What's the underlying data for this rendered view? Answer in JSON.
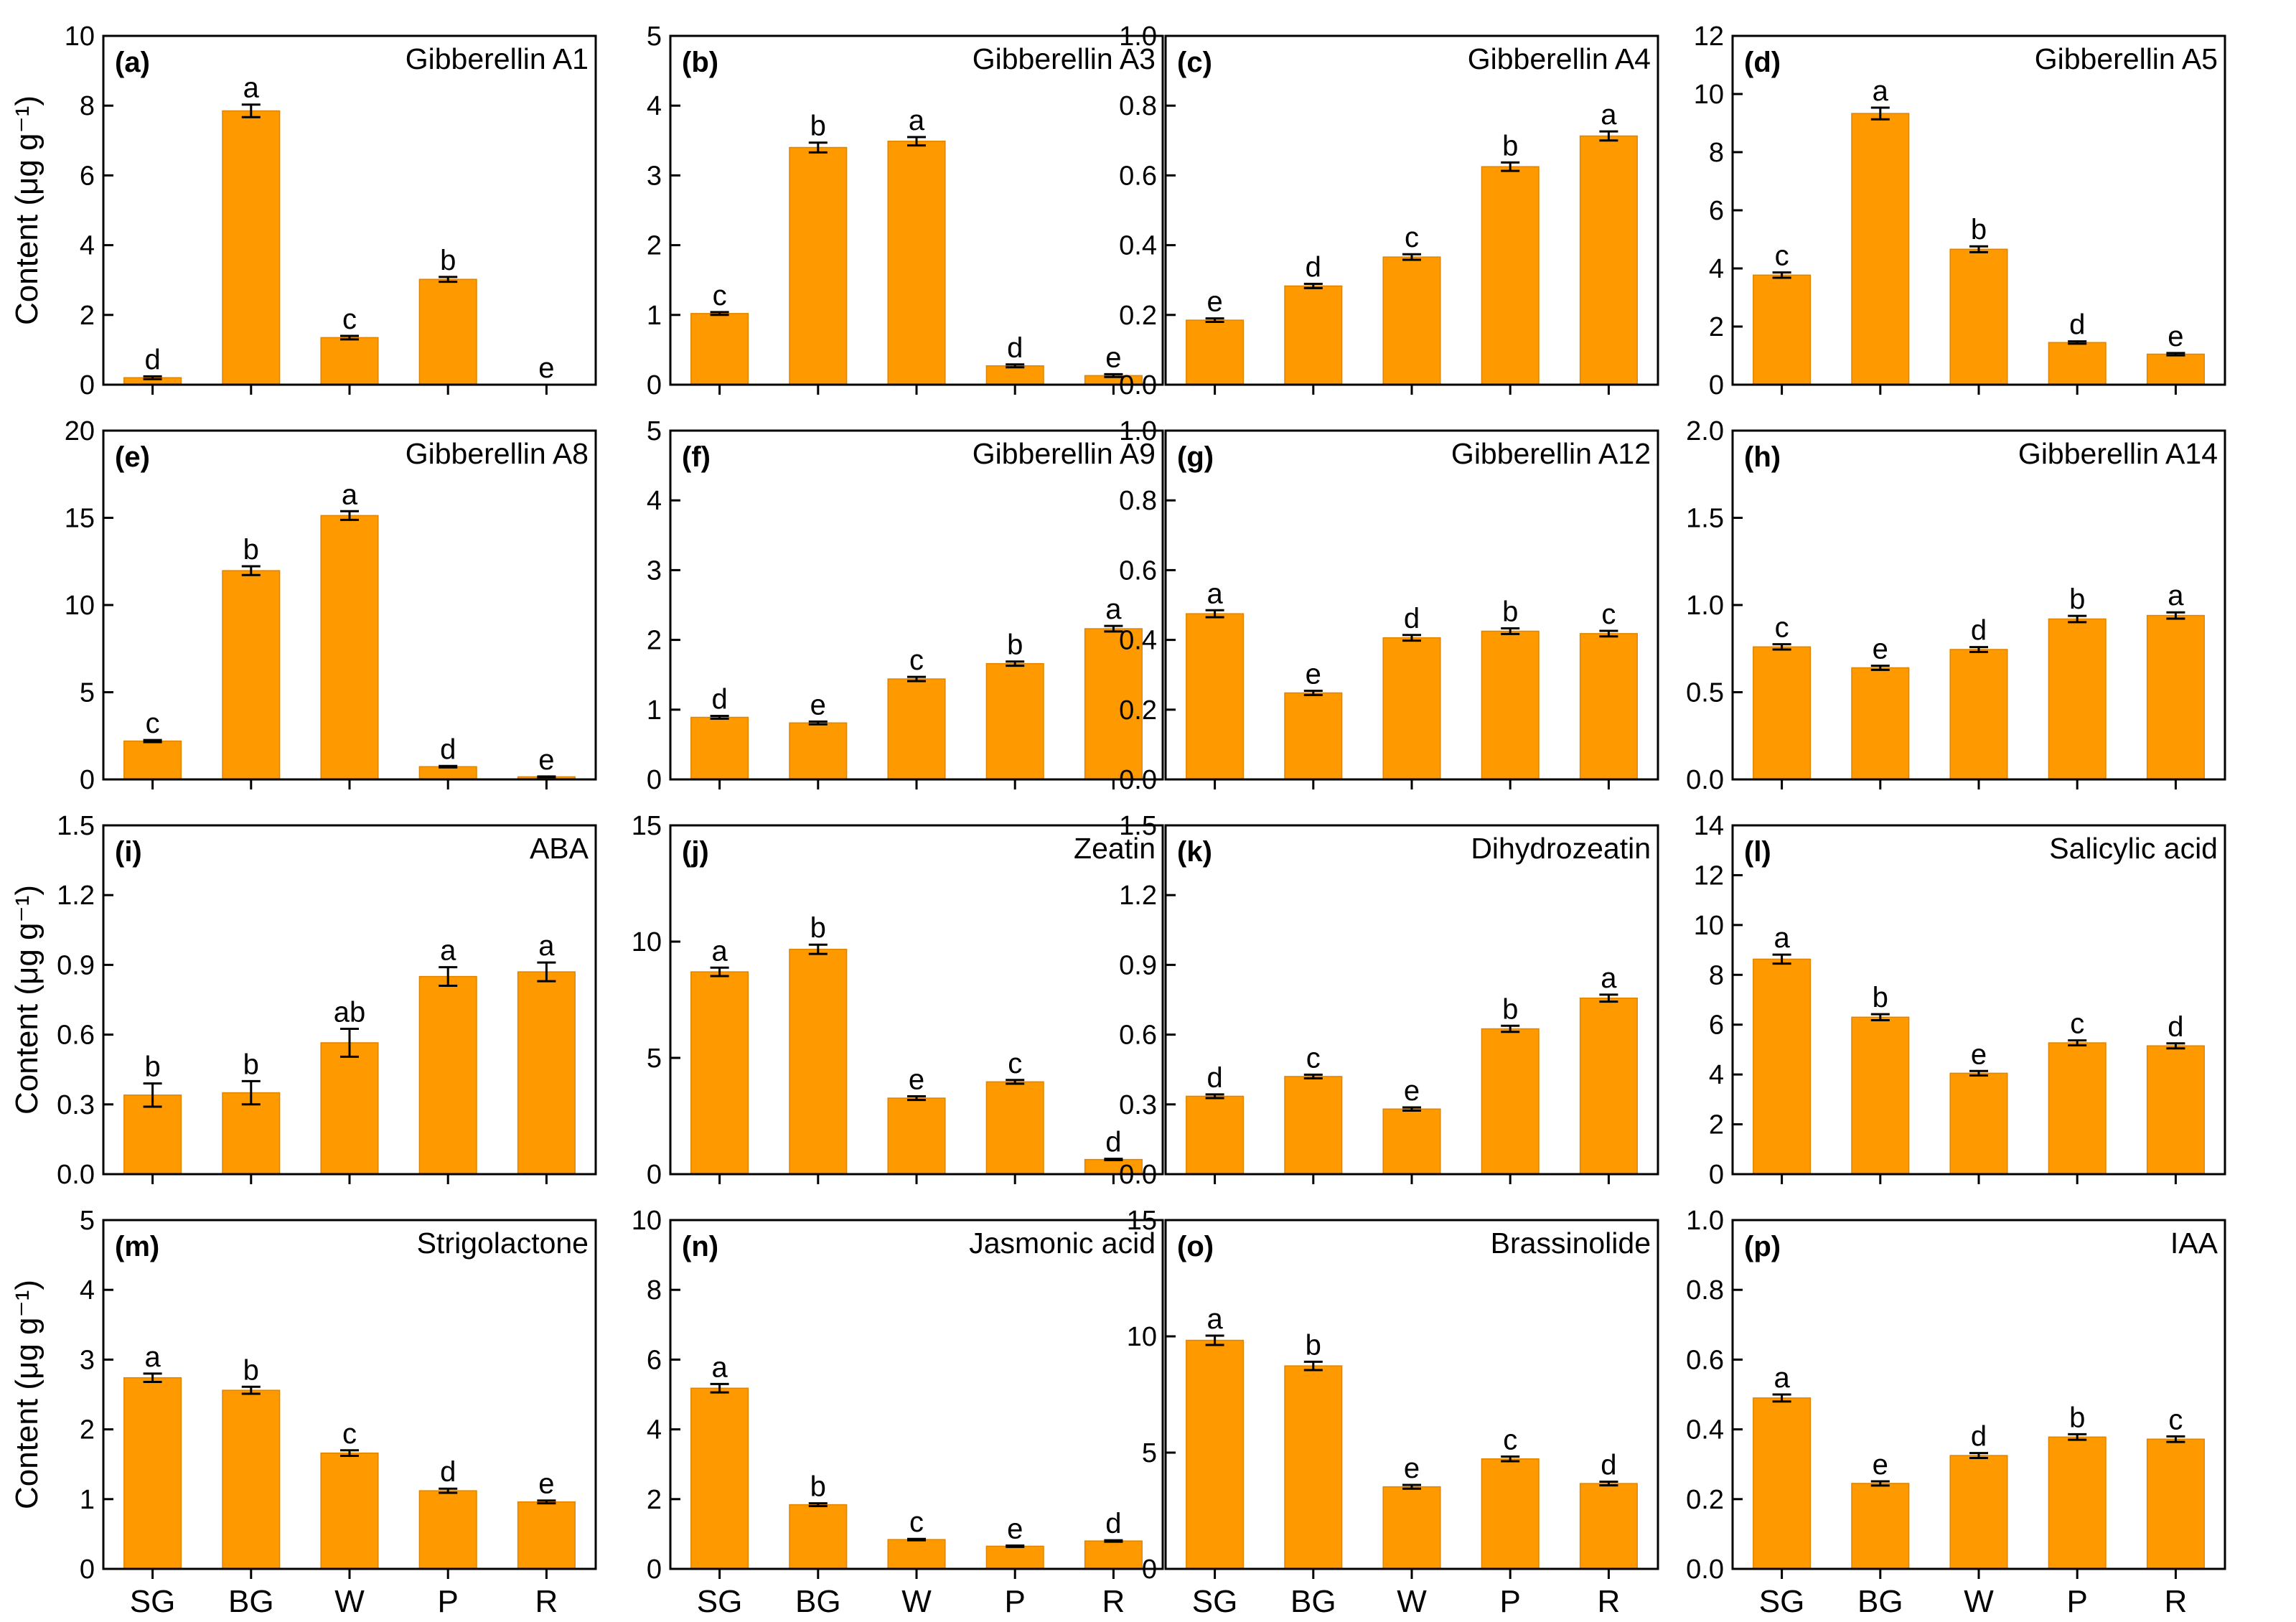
{
  "style": {
    "bar_color": "#FF9900",
    "bar_edge": "#E08400",
    "axis_color": "#000000"
  },
  "chart_data": [
    {
      "type": "bar",
      "label": "(a)",
      "title": "Gibberellin A1",
      "ylabel": "Content (μg g⁻¹)",
      "ylim": [
        0,
        10
      ],
      "yticks": [
        "0",
        "2",
        "4",
        "6",
        "8",
        "10"
      ],
      "categories": [
        "SG",
        "BG",
        "W",
        "P",
        "R"
      ],
      "values": [
        0.2,
        7.85,
        1.35,
        3.02,
        0
      ],
      "errors": [
        0.04,
        0.18,
        0.05,
        0.07,
        0
      ],
      "letters": [
        "d",
        "a",
        "c",
        "b",
        "e"
      ]
    },
    {
      "type": "bar",
      "label": "(b)",
      "title": "Gibberellin A3",
      "ylim": [
        0,
        5
      ],
      "yticks": [
        "0",
        "1",
        "2",
        "3",
        "4",
        "5"
      ],
      "categories": [
        "SG",
        "BG",
        "W",
        "P",
        "R"
      ],
      "values": [
        1.02,
        3.4,
        3.49,
        0.27,
        0.13
      ],
      "errors": [
        0.02,
        0.07,
        0.06,
        0.02,
        0.02
      ],
      "letters": [
        "c",
        "b",
        "a",
        "d",
        "e"
      ]
    },
    {
      "type": "bar",
      "label": "(c)",
      "title": "Gibberellin A4",
      "ylim": [
        0,
        1.0
      ],
      "yticks": [
        "0.0",
        "0.2",
        "0.4",
        "0.6",
        "0.8",
        "1.0"
      ],
      "categories": [
        "SG",
        "BG",
        "W",
        "P",
        "R"
      ],
      "values": [
        0.185,
        0.283,
        0.366,
        0.625,
        0.713
      ],
      "errors": [
        0.005,
        0.006,
        0.008,
        0.012,
        0.013
      ],
      "letters": [
        "e",
        "d",
        "c",
        "b",
        "a"
      ]
    },
    {
      "type": "bar",
      "label": "(d)",
      "title": "Gibberellin A5",
      "ylim": [
        0,
        12
      ],
      "yticks": [
        "0",
        "2",
        "4",
        "6",
        "8",
        "10",
        "12"
      ],
      "categories": [
        "SG",
        "BG",
        "W",
        "P",
        "R"
      ],
      "values": [
        3.77,
        9.33,
        4.66,
        1.45,
        1.05
      ],
      "errors": [
        0.09,
        0.2,
        0.1,
        0.04,
        0.04
      ],
      "letters": [
        "c",
        "a",
        "b",
        "d",
        "e"
      ]
    },
    {
      "type": "bar",
      "label": "(e)",
      "title": "Gibberellin A8",
      "ylim": [
        0,
        20
      ],
      "yticks": [
        "0",
        "5",
        "10",
        "15",
        "20"
      ],
      "categories": [
        "SG",
        "BG",
        "W",
        "P",
        "R"
      ],
      "values": [
        2.2,
        11.97,
        15.13,
        0.73,
        0.15
      ],
      "errors": [
        0.06,
        0.25,
        0.25,
        0.04,
        0.02
      ],
      "letters": [
        "c",
        "b",
        "a",
        "d",
        "e"
      ]
    },
    {
      "type": "bar",
      "label": "(f)",
      "title": "Gibberellin A9",
      "ylim": [
        0,
        5
      ],
      "yticks": [
        "0",
        "1",
        "2",
        "3",
        "4",
        "5"
      ],
      "categories": [
        "SG",
        "BG",
        "W",
        "P",
        "R"
      ],
      "values": [
        0.89,
        0.81,
        1.44,
        1.66,
        2.16
      ],
      "errors": [
        0.02,
        0.02,
        0.03,
        0.03,
        0.04
      ],
      "letters": [
        "d",
        "e",
        "c",
        "b",
        "a"
      ]
    },
    {
      "type": "bar",
      "label": "(g)",
      "title": "Gibberellin A12",
      "ylim": [
        0,
        1.0
      ],
      "yticks": [
        "0.0",
        "0.2",
        "0.4",
        "0.6",
        "0.8",
        "1.0"
      ],
      "categories": [
        "SG",
        "BG",
        "W",
        "P",
        "R"
      ],
      "values": [
        0.475,
        0.248,
        0.406,
        0.425,
        0.418
      ],
      "errors": [
        0.01,
        0.006,
        0.008,
        0.008,
        0.008
      ],
      "letters": [
        "a",
        "e",
        "d",
        "b",
        "c"
      ]
    },
    {
      "type": "bar",
      "label": "(h)",
      "title": "Gibberellin A14",
      "ylim": [
        0,
        2.0
      ],
      "yticks": [
        "0.0",
        "0.5",
        "1.0",
        "1.5",
        "2.0"
      ],
      "categories": [
        "SG",
        "BG",
        "W",
        "P",
        "R"
      ],
      "values": [
        0.76,
        0.64,
        0.745,
        0.92,
        0.94
      ],
      "errors": [
        0.015,
        0.012,
        0.014,
        0.018,
        0.018
      ],
      "letters": [
        "c",
        "e",
        "d",
        "b",
        "a"
      ]
    },
    {
      "type": "bar",
      "label": "(i)",
      "title": "ABA",
      "ylabel": "Content (μg g⁻¹)",
      "ylim": [
        0,
        1.5
      ],
      "yticks": [
        "0.0",
        "0.3",
        "0.6",
        "0.9",
        "1.2",
        "1.5"
      ],
      "categories": [
        "SG",
        "BG",
        "W",
        "P",
        "R"
      ],
      "values": [
        0.34,
        0.35,
        0.565,
        0.85,
        0.87
      ],
      "errors": [
        0.05,
        0.05,
        0.06,
        0.04,
        0.04
      ],
      "letters": [
        "b",
        "b",
        "ab",
        "a",
        "a"
      ]
    },
    {
      "type": "bar",
      "label": "(j)",
      "title": "Zeatin",
      "ylim": [
        0,
        15
      ],
      "yticks": [
        "0",
        "5",
        "10",
        "15"
      ],
      "categories": [
        "SG",
        "BG",
        "W",
        "P",
        "R"
      ],
      "values": [
        8.7,
        9.67,
        3.27,
        3.97,
        0.63
      ],
      "errors": [
        0.18,
        0.2,
        0.08,
        0.08,
        0.03
      ],
      "letters": [
        "a",
        "b",
        "e",
        "c",
        "d"
      ]
    },
    {
      "type": "bar",
      "label": "(k)",
      "title": "Dihydrozeatin",
      "ylim": [
        0,
        1.5
      ],
      "yticks": [
        "0.0",
        "0.3",
        "0.6",
        "0.9",
        "1.2",
        "1.5"
      ],
      "categories": [
        "SG",
        "BG",
        "W",
        "P",
        "R"
      ],
      "values": [
        0.335,
        0.42,
        0.28,
        0.625,
        0.757
      ],
      "errors": [
        0.008,
        0.008,
        0.007,
        0.013,
        0.015
      ],
      "letters": [
        "d",
        "c",
        "e",
        "b",
        "a"
      ]
    },
    {
      "type": "bar",
      "label": "(l)",
      "title": "Salicylic acid",
      "ylim": [
        0,
        14
      ],
      "yticks": [
        "0",
        "2",
        "4",
        "6",
        "8",
        "10",
        "12",
        "14"
      ],
      "categories": [
        "SG",
        "BG",
        "W",
        "P",
        "R"
      ],
      "values": [
        8.63,
        6.3,
        4.05,
        5.27,
        5.15
      ],
      "errors": [
        0.18,
        0.12,
        0.09,
        0.1,
        0.1
      ],
      "letters": [
        "a",
        "b",
        "e",
        "c",
        "d"
      ]
    },
    {
      "type": "bar",
      "label": "(m)",
      "title": "Strigolactone",
      "ylabel": "Content (μg g⁻¹)",
      "ylim": [
        0,
        5
      ],
      "yticks": [
        "0",
        "1",
        "2",
        "3",
        "4",
        "5"
      ],
      "categories": [
        "SG",
        "BG",
        "W",
        "P",
        "R"
      ],
      "values": [
        2.74,
        2.56,
        1.66,
        1.12,
        0.96
      ],
      "errors": [
        0.06,
        0.05,
        0.04,
        0.03,
        0.02
      ],
      "letters": [
        "a",
        "b",
        "c",
        "d",
        "e"
      ]
    },
    {
      "type": "bar",
      "label": "(n)",
      "title": "Jasmonic acid",
      "ylim": [
        0,
        10
      ],
      "yticks": [
        "0",
        "2",
        "4",
        "6",
        "8",
        "10"
      ],
      "categories": [
        "SG",
        "BG",
        "W",
        "P",
        "R"
      ],
      "values": [
        5.18,
        1.84,
        0.84,
        0.65,
        0.8
      ],
      "errors": [
        0.12,
        0.04,
        0.02,
        0.02,
        0.02
      ],
      "letters": [
        "a",
        "b",
        "c",
        "e",
        "d"
      ]
    },
    {
      "type": "bar",
      "label": "(o)",
      "title": "Brassinolide",
      "ylim": [
        0,
        15
      ],
      "yticks": [
        "0",
        "5",
        "10",
        "15"
      ],
      "categories": [
        "SG",
        "BG",
        "W",
        "P",
        "R"
      ],
      "values": [
        9.83,
        8.73,
        3.53,
        4.73,
        3.67
      ],
      "errors": [
        0.2,
        0.18,
        0.08,
        0.1,
        0.08
      ],
      "letters": [
        "a",
        "b",
        "e",
        "c",
        "d"
      ]
    },
    {
      "type": "bar",
      "label": "(p)",
      "title": "IAA",
      "ylim": [
        0,
        1.0
      ],
      "yticks": [
        "0.0",
        "0.2",
        "0.4",
        "0.6",
        "0.8",
        "1.0"
      ],
      "categories": [
        "SG",
        "BG",
        "W",
        "P",
        "R"
      ],
      "values": [
        0.49,
        0.245,
        0.325,
        0.378,
        0.372
      ],
      "errors": [
        0.01,
        0.006,
        0.007,
        0.008,
        0.008
      ],
      "letters": [
        "a",
        "e",
        "d",
        "b",
        "c"
      ]
    }
  ]
}
